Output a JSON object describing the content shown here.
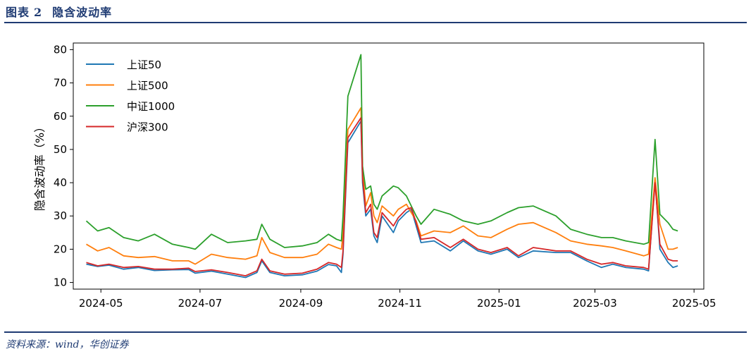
{
  "header": {
    "figure_label": "图表",
    "figure_number": "2",
    "title": "隐含波动率"
  },
  "footer": {
    "source": "资料来源：wind，华创证券"
  },
  "colors": {
    "brand": "#1f3b73",
    "series": [
      "#1f77b4",
      "#ff7f0e",
      "#2ca02c",
      "#d62728"
    ]
  },
  "chart_data": {
    "type": "line",
    "title": "",
    "xlabel": "",
    "ylabel": "隐含波动率（%）",
    "ylim": [
      8,
      82
    ],
    "xlim": [
      "2024-04-14",
      "2025-05-07"
    ],
    "yticks": [
      10,
      20,
      30,
      40,
      50,
      60,
      70,
      80
    ],
    "xticks": [
      {
        "date": "2024-05-01",
        "label": "2024-05"
      },
      {
        "date": "2024-07-01",
        "label": "2024-07"
      },
      {
        "date": "2024-09-01",
        "label": "2024-09"
      },
      {
        "date": "2024-11-01",
        "label": "2024-11"
      },
      {
        "date": "2025-01-01",
        "label": "2025-01"
      },
      {
        "date": "2025-03-01",
        "label": "2025-03"
      },
      {
        "date": "2025-05-01",
        "label": "2025-05"
      }
    ],
    "grid": false,
    "legend_position": "top-left",
    "series": [
      {
        "name": "上证50",
        "color": "#1f77b4",
        "points": [
          [
            "2024-04-22",
            15.5
          ],
          [
            "2024-04-29",
            14.8
          ],
          [
            "2024-05-06",
            15.2
          ],
          [
            "2024-05-15",
            14.0
          ],
          [
            "2024-05-24",
            14.5
          ],
          [
            "2024-06-03",
            13.6
          ],
          [
            "2024-06-14",
            13.8
          ],
          [
            "2024-06-24",
            13.9
          ],
          [
            "2024-06-28",
            12.8
          ],
          [
            "2024-07-08",
            13.4
          ],
          [
            "2024-07-18",
            12.5
          ],
          [
            "2024-07-29",
            11.5
          ],
          [
            "2024-08-05",
            13.0
          ],
          [
            "2024-08-08",
            16.5
          ],
          [
            "2024-08-13",
            13.0
          ],
          [
            "2024-08-22",
            12.0
          ],
          [
            "2024-09-02",
            12.3
          ],
          [
            "2024-09-11",
            13.4
          ],
          [
            "2024-09-18",
            15.4
          ],
          [
            "2024-09-23",
            15.0
          ],
          [
            "2024-09-26",
            13.0
          ],
          [
            "2024-09-27",
            18.5
          ],
          [
            "2024-09-30",
            52.0
          ],
          [
            "2024-10-08",
            58.5
          ],
          [
            "2024-10-09",
            40.0
          ],
          [
            "2024-10-11",
            30.0
          ],
          [
            "2024-10-14",
            32.0
          ],
          [
            "2024-10-16",
            24.0
          ],
          [
            "2024-10-18",
            22.0
          ],
          [
            "2024-10-21",
            30.0
          ],
          [
            "2024-10-28",
            25.0
          ],
          [
            "2024-10-31",
            28.5
          ],
          [
            "2024-11-05",
            31.0
          ],
          [
            "2024-11-08",
            32.0
          ],
          [
            "2024-11-11",
            27.0
          ],
          [
            "2024-11-14",
            22.0
          ],
          [
            "2024-11-22",
            22.5
          ],
          [
            "2024-12-02",
            19.5
          ],
          [
            "2024-12-10",
            22.5
          ],
          [
            "2024-12-19",
            19.5
          ],
          [
            "2024-12-27",
            18.5
          ],
          [
            "2025-01-06",
            20.0
          ],
          [
            "2025-01-13",
            17.5
          ],
          [
            "2025-01-22",
            19.5
          ],
          [
            "2025-02-05",
            19.0
          ],
          [
            "2025-02-14",
            19.0
          ],
          [
            "2025-02-24",
            16.5
          ],
          [
            "2025-03-05",
            14.5
          ],
          [
            "2025-03-12",
            15.5
          ],
          [
            "2025-03-20",
            14.5
          ],
          [
            "2025-03-31",
            14.0
          ],
          [
            "2025-04-03",
            13.5
          ],
          [
            "2025-04-07",
            41.0
          ],
          [
            "2025-04-10",
            20.0
          ],
          [
            "2025-04-15",
            16.0
          ],
          [
            "2025-04-18",
            14.5
          ],
          [
            "2025-04-21",
            15.0
          ]
        ]
      },
      {
        "name": "上证500",
        "color": "#ff7f0e",
        "points": [
          [
            "2024-04-22",
            21.5
          ],
          [
            "2024-04-29",
            19.5
          ],
          [
            "2024-05-06",
            20.5
          ],
          [
            "2024-05-15",
            18.0
          ],
          [
            "2024-05-24",
            17.5
          ],
          [
            "2024-06-03",
            17.8
          ],
          [
            "2024-06-14",
            16.5
          ],
          [
            "2024-06-24",
            16.5
          ],
          [
            "2024-06-28",
            15.5
          ],
          [
            "2024-07-08",
            18.5
          ],
          [
            "2024-07-18",
            17.5
          ],
          [
            "2024-07-29",
            17.0
          ],
          [
            "2024-08-05",
            18.0
          ],
          [
            "2024-08-08",
            23.5
          ],
          [
            "2024-08-13",
            19.0
          ],
          [
            "2024-08-22",
            17.5
          ],
          [
            "2024-09-02",
            17.5
          ],
          [
            "2024-09-11",
            18.5
          ],
          [
            "2024-09-18",
            21.5
          ],
          [
            "2024-09-23",
            20.5
          ],
          [
            "2024-09-26",
            20.0
          ],
          [
            "2024-09-27",
            24.5
          ],
          [
            "2024-09-30",
            56.0
          ],
          [
            "2024-10-08",
            62.5
          ],
          [
            "2024-10-09",
            44.0
          ],
          [
            "2024-10-11",
            33.0
          ],
          [
            "2024-10-14",
            37.0
          ],
          [
            "2024-10-16",
            30.0
          ],
          [
            "2024-10-18",
            28.0
          ],
          [
            "2024-10-21",
            33.0
          ],
          [
            "2024-10-28",
            30.0
          ],
          [
            "2024-10-31",
            32.0
          ],
          [
            "2024-11-05",
            33.5
          ],
          [
            "2024-11-08",
            31.0
          ],
          [
            "2024-11-11",
            28.5
          ],
          [
            "2024-11-14",
            24.0
          ],
          [
            "2024-11-22",
            25.5
          ],
          [
            "2024-12-02",
            25.0
          ],
          [
            "2024-12-10",
            27.0
          ],
          [
            "2024-12-19",
            24.0
          ],
          [
            "2024-12-27",
            23.5
          ],
          [
            "2025-01-06",
            26.0
          ],
          [
            "2025-01-13",
            27.5
          ],
          [
            "2025-01-22",
            28.0
          ],
          [
            "2025-02-05",
            25.0
          ],
          [
            "2025-02-14",
            22.5
          ],
          [
            "2025-02-24",
            21.5
          ],
          [
            "2025-03-05",
            21.0
          ],
          [
            "2025-03-12",
            20.5
          ],
          [
            "2025-03-20",
            19.5
          ],
          [
            "2025-03-31",
            18.0
          ],
          [
            "2025-04-03",
            18.5
          ],
          [
            "2025-04-07",
            41.5
          ],
          [
            "2025-04-10",
            27.5
          ],
          [
            "2025-04-15",
            20.0
          ],
          [
            "2025-04-18",
            20.0
          ],
          [
            "2025-04-21",
            20.5
          ]
        ]
      },
      {
        "name": "中证1000",
        "color": "#2ca02c",
        "points": [
          [
            "2024-04-22",
            28.5
          ],
          [
            "2024-04-29",
            25.5
          ],
          [
            "2024-05-06",
            26.5
          ],
          [
            "2024-05-15",
            23.5
          ],
          [
            "2024-05-24",
            22.5
          ],
          [
            "2024-06-03",
            24.5
          ],
          [
            "2024-06-14",
            21.5
          ],
          [
            "2024-06-24",
            20.5
          ],
          [
            "2024-06-28",
            20.0
          ],
          [
            "2024-07-08",
            24.5
          ],
          [
            "2024-07-18",
            22.0
          ],
          [
            "2024-07-29",
            22.5
          ],
          [
            "2024-08-05",
            23.0
          ],
          [
            "2024-08-08",
            27.5
          ],
          [
            "2024-08-13",
            23.0
          ],
          [
            "2024-08-22",
            20.5
          ],
          [
            "2024-09-02",
            21.0
          ],
          [
            "2024-09-11",
            22.0
          ],
          [
            "2024-09-18",
            24.5
          ],
          [
            "2024-09-23",
            23.0
          ],
          [
            "2024-09-26",
            22.5
          ],
          [
            "2024-09-27",
            30.0
          ],
          [
            "2024-09-30",
            66.0
          ],
          [
            "2024-10-08",
            78.5
          ],
          [
            "2024-10-09",
            45.0
          ],
          [
            "2024-10-11",
            38.0
          ],
          [
            "2024-10-14",
            39.0
          ],
          [
            "2024-10-16",
            33.5
          ],
          [
            "2024-10-18",
            32.0
          ],
          [
            "2024-10-21",
            36.0
          ],
          [
            "2024-10-28",
            39.0
          ],
          [
            "2024-10-31",
            38.5
          ],
          [
            "2024-11-05",
            36.0
          ],
          [
            "2024-11-08",
            33.0
          ],
          [
            "2024-11-11",
            30.0
          ],
          [
            "2024-11-14",
            27.5
          ],
          [
            "2024-11-22",
            32.0
          ],
          [
            "2024-12-02",
            30.5
          ],
          [
            "2024-12-10",
            28.5
          ],
          [
            "2024-12-19",
            27.5
          ],
          [
            "2024-12-27",
            28.5
          ],
          [
            "2025-01-06",
            31.0
          ],
          [
            "2025-01-13",
            32.5
          ],
          [
            "2025-01-22",
            33.0
          ],
          [
            "2025-02-05",
            30.0
          ],
          [
            "2025-02-14",
            26.0
          ],
          [
            "2025-02-24",
            24.5
          ],
          [
            "2025-03-05",
            23.5
          ],
          [
            "2025-03-12",
            23.5
          ],
          [
            "2025-03-20",
            22.5
          ],
          [
            "2025-03-31",
            21.5
          ],
          [
            "2025-04-03",
            22.0
          ],
          [
            "2025-04-07",
            53.0
          ],
          [
            "2025-04-10",
            30.5
          ],
          [
            "2025-04-15",
            28.0
          ],
          [
            "2025-04-18",
            26.0
          ],
          [
            "2025-04-21",
            25.5
          ]
        ]
      },
      {
        "name": "沪深300",
        "color": "#d62728",
        "points": [
          [
            "2024-04-22",
            16.0
          ],
          [
            "2024-04-29",
            15.0
          ],
          [
            "2024-05-06",
            15.5
          ],
          [
            "2024-05-15",
            14.5
          ],
          [
            "2024-05-24",
            14.8
          ],
          [
            "2024-06-03",
            14.0
          ],
          [
            "2024-06-14",
            14.0
          ],
          [
            "2024-06-24",
            14.3
          ],
          [
            "2024-06-28",
            13.3
          ],
          [
            "2024-07-08",
            13.8
          ],
          [
            "2024-07-18",
            13.0
          ],
          [
            "2024-07-29",
            12.0
          ],
          [
            "2024-08-05",
            13.5
          ],
          [
            "2024-08-08",
            17.0
          ],
          [
            "2024-08-13",
            13.5
          ],
          [
            "2024-08-22",
            12.5
          ],
          [
            "2024-09-02",
            12.8
          ],
          [
            "2024-09-11",
            14.0
          ],
          [
            "2024-09-18",
            16.0
          ],
          [
            "2024-09-23",
            15.5
          ],
          [
            "2024-09-26",
            14.5
          ],
          [
            "2024-09-27",
            19.5
          ],
          [
            "2024-09-30",
            53.5
          ],
          [
            "2024-10-08",
            59.5
          ],
          [
            "2024-10-09",
            41.5
          ],
          [
            "2024-10-11",
            31.0
          ],
          [
            "2024-10-14",
            33.5
          ],
          [
            "2024-10-16",
            25.0
          ],
          [
            "2024-10-18",
            23.5
          ],
          [
            "2024-10-21",
            31.0
          ],
          [
            "2024-10-28",
            27.0
          ],
          [
            "2024-10-31",
            29.5
          ],
          [
            "2024-11-05",
            32.0
          ],
          [
            "2024-11-08",
            32.5
          ],
          [
            "2024-11-11",
            28.0
          ],
          [
            "2024-11-14",
            23.0
          ],
          [
            "2024-11-22",
            23.5
          ],
          [
            "2024-12-02",
            20.5
          ],
          [
            "2024-12-10",
            23.0
          ],
          [
            "2024-12-19",
            20.0
          ],
          [
            "2024-12-27",
            19.0
          ],
          [
            "2025-01-06",
            20.5
          ],
          [
            "2025-01-13",
            18.0
          ],
          [
            "2025-01-22",
            20.5
          ],
          [
            "2025-02-05",
            19.5
          ],
          [
            "2025-02-14",
            19.5
          ],
          [
            "2025-02-24",
            17.0
          ],
          [
            "2025-03-05",
            15.5
          ],
          [
            "2025-03-12",
            16.0
          ],
          [
            "2025-03-20",
            15.0
          ],
          [
            "2025-03-31",
            14.5
          ],
          [
            "2025-04-03",
            14.0
          ],
          [
            "2025-04-07",
            40.0
          ],
          [
            "2025-04-10",
            21.5
          ],
          [
            "2025-04-15",
            17.0
          ],
          [
            "2025-04-18",
            16.5
          ],
          [
            "2025-04-21",
            16.5
          ]
        ]
      }
    ]
  }
}
